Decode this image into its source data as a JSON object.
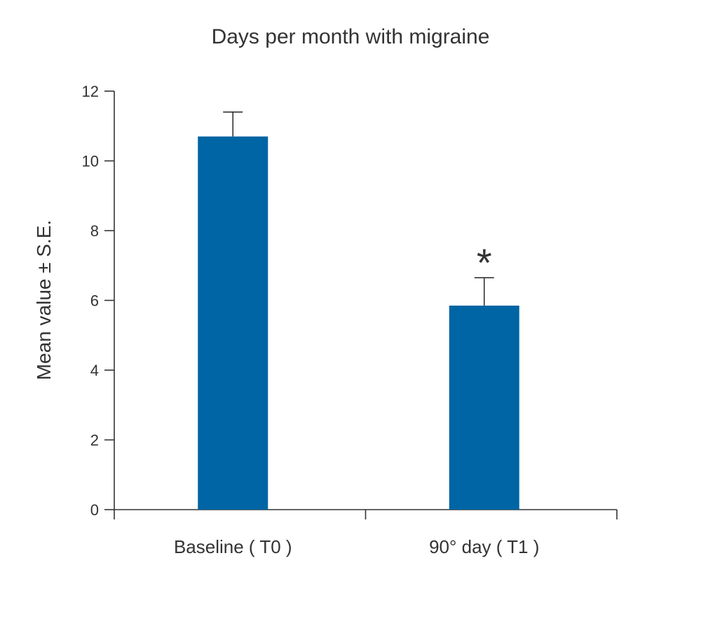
{
  "chart_data": {
    "type": "bar",
    "title": "Days per month with migraine",
    "xlabel": "",
    "ylabel": "Mean value ± S.E.",
    "categories": [
      "Baseline ( T0 )",
      "90° day ( T1 )"
    ],
    "values": [
      10.7,
      5.85
    ],
    "errors": [
      0.7,
      0.8
    ],
    "annotations": [
      "",
      "*"
    ],
    "ylim": [
      0,
      12
    ],
    "yticks": [
      0,
      2,
      4,
      6,
      8,
      10,
      12
    ],
    "grid": false,
    "bar_color": "#0065a4",
    "axis_color": "#333333"
  }
}
